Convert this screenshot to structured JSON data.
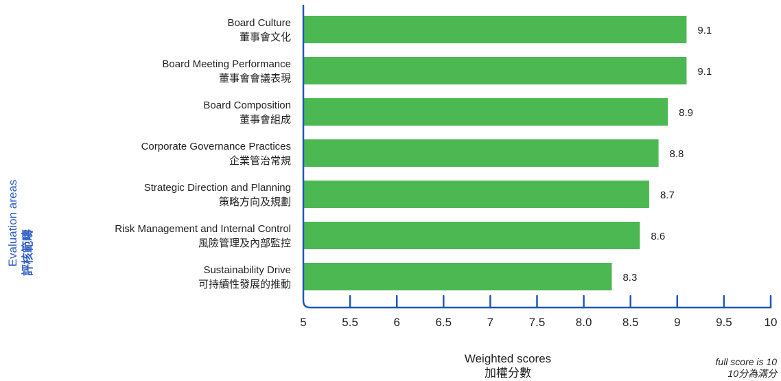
{
  "chart_data": {
    "type": "bar",
    "orientation": "horizontal",
    "categories": [
      {
        "en": "Board Culture",
        "zh": "董事會文化"
      },
      {
        "en": "Board Meeting Performance",
        "zh": "董事會會議表現"
      },
      {
        "en": "Board Composition",
        "zh": "董事會組成"
      },
      {
        "en": "Corporate Governance Practices",
        "zh": "企業管治常規"
      },
      {
        "en": "Strategic Direction and Planning",
        "zh": "策略方向及規劃"
      },
      {
        "en": "Risk Management and Internal Control",
        "zh": "風險管理及內部監控"
      },
      {
        "en": "Sustainability Drive",
        "zh": "可持續性發展的推動"
      }
    ],
    "values": [
      9.1,
      9.1,
      8.9,
      8.8,
      8.7,
      8.6,
      8.3
    ],
    "value_labels": [
      "9.1",
      "9.1",
      "8.9",
      "8.8",
      "8.7",
      "8.6",
      "8.3"
    ],
    "xlim": [
      5,
      10
    ],
    "xticks": [
      5,
      5.5,
      6,
      6.5,
      7,
      7.5,
      8.0,
      8.5,
      9,
      9.5,
      10
    ],
    "xtick_labels": [
      "5",
      "5.5",
      "6",
      "6.5",
      "7",
      "7.5",
      "8.0",
      "8.5",
      "9",
      "9.5",
      "10"
    ],
    "xlabel": {
      "en": "Weighted scores",
      "zh": "加權分數"
    },
    "ylabel": {
      "en": "Evaluation areas",
      "zh": "評核範疇"
    },
    "note": {
      "en": "full score is 10",
      "zh": "10分為滿分"
    },
    "grid": false,
    "colors": {
      "bar": "#4cb852",
      "axis": "#1f56b8",
      "ylabel": "#2f5fc4"
    }
  }
}
